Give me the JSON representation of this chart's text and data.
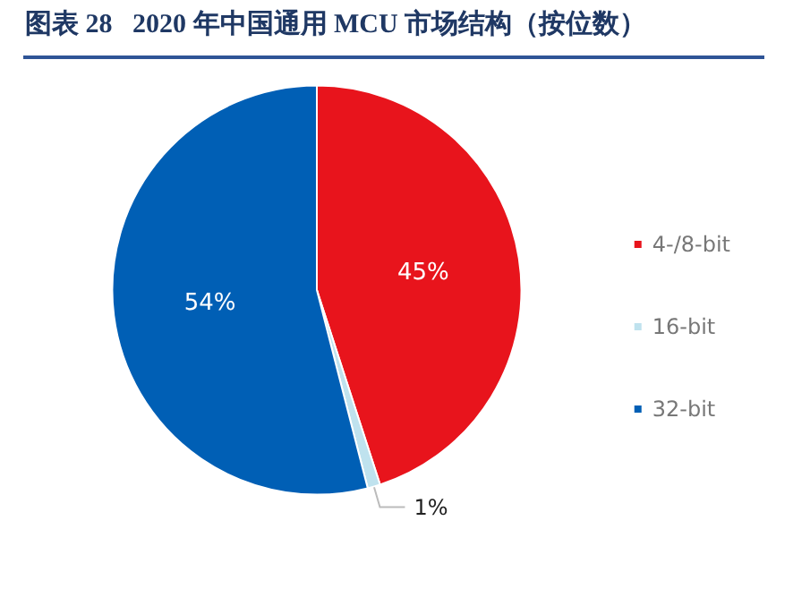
{
  "chart_data": {
    "type": "pie",
    "title": "图表 28   2020 年中国通用 MCU 市场结构（按位数）",
    "categories": [
      "4-/8-bit",
      "16-bit",
      "32-bit"
    ],
    "values": [
      45,
      1,
      54
    ],
    "colors": [
      "#e8141c",
      "#bfe2ee",
      "#005fb5"
    ],
    "value_labels": [
      "45%",
      "1%",
      "54%"
    ],
    "legend": "right"
  }
}
